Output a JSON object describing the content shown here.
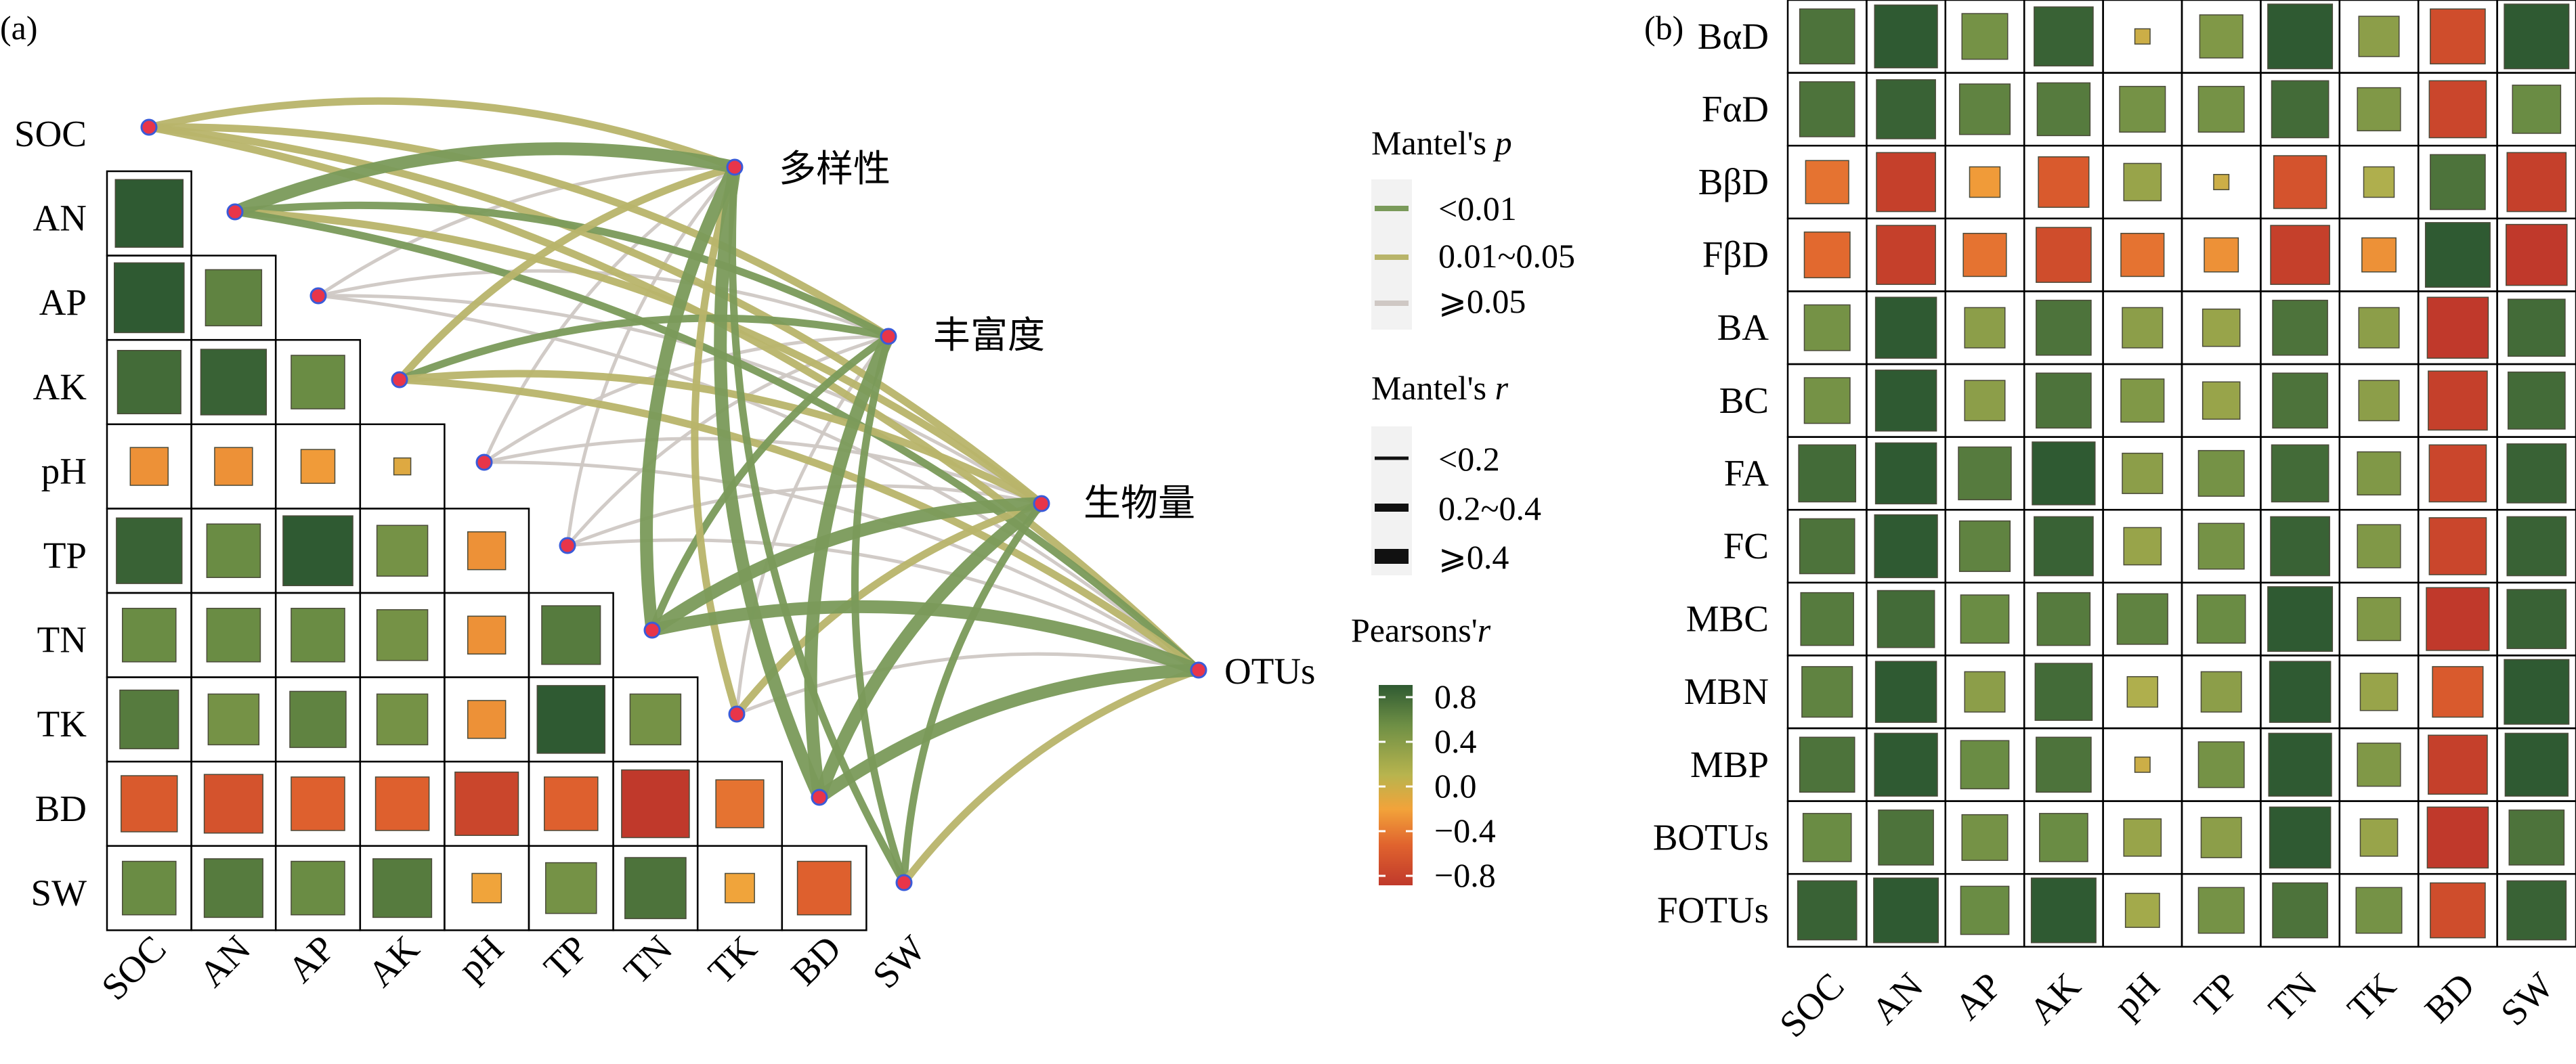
{
  "panels": {
    "a_label": "(a)",
    "b_label": "(b)"
  },
  "colors": {
    "p_lt_001": "#7a9a5a",
    "p_001_005": "#b8b46a",
    "p_ge_005": "#cfc8c4",
    "scale": [
      "#c0392b",
      "#e0632e",
      "#f2a33a",
      "#b8b44e",
      "#6e8f45",
      "#2f5a32"
    ],
    "node_fill": "#e8354a",
    "node_stroke": "#3a5bd9"
  },
  "legend": {
    "p_title": "Mantel's ",
    "p_title_italic": "p",
    "p_items": [
      "<0.01",
      "0.01~0.05",
      "⩾0.05"
    ],
    "r_title": "Mantel's ",
    "r_title_italic": "r",
    "r_items": [
      "<0.2",
      "0.2~0.4",
      "⩾0.4"
    ],
    "pearson_title": "Pearsons'",
    "pearson_title_italic": "r",
    "pearson_ticks": [
      "0.8",
      "0.4",
      "0.0",
      "−0.4",
      "−0.8"
    ]
  },
  "chart_data": [
    {
      "panel": "(a)",
      "type": "heatmap",
      "layout": "lower-triangle correlation matrix with Mantel network",
      "variables": [
        "SOC",
        "AN",
        "AP",
        "AK",
        "pH",
        "TP",
        "TN",
        "TK",
        "BD",
        "SW"
      ],
      "matrix": [
        [
          0.8
        ],
        [
          0.85,
          0.55
        ],
        [
          0.7,
          0.75,
          0.5
        ],
        [
          -0.25,
          -0.25,
          -0.2,
          -0.05
        ],
        [
          0.75,
          0.5,
          0.85,
          0.45,
          -0.25
        ],
        [
          0.5,
          0.5,
          0.5,
          0.45,
          -0.25,
          0.6
        ],
        [
          0.6,
          0.45,
          0.55,
          0.45,
          -0.25,
          0.8,
          0.45
        ],
        [
          -0.55,
          -0.6,
          -0.5,
          -0.5,
          -0.7,
          -0.5,
          -0.8,
          -0.4
        ],
        [
          0.5,
          0.6,
          0.5,
          0.6,
          -0.15,
          0.45,
          0.65,
          -0.15,
          -0.5
        ]
      ],
      "targets": [
        "多样性",
        "丰富度",
        "生物量",
        "OTUs"
      ],
      "mantel_links": [
        {
          "from": "SOC",
          "to": "多样性",
          "p": "0.01~0.05",
          "r": "0.2~0.4"
        },
        {
          "from": "SOC",
          "to": "丰富度",
          "p": "0.01~0.05",
          "r": "0.2~0.4"
        },
        {
          "from": "SOC",
          "to": "生物量",
          "p": "0.01~0.05",
          "r": "0.2~0.4"
        },
        {
          "from": "SOC",
          "to": "OTUs",
          "p": "0.01~0.05",
          "r": "0.2~0.4"
        },
        {
          "from": "AN",
          "to": "多样性",
          "p": "<0.01",
          "r": "⩾0.4"
        },
        {
          "from": "AN",
          "to": "丰富度",
          "p": "<0.01",
          "r": "0.2~0.4"
        },
        {
          "from": "AN",
          "to": "生物量",
          "p": "0.01~0.05",
          "r": "0.2~0.4"
        },
        {
          "from": "AN",
          "to": "OTUs",
          "p": "<0.01",
          "r": "0.2~0.4"
        },
        {
          "from": "AP",
          "to": "多样性",
          "p": "⩾0.05",
          "r": "<0.2"
        },
        {
          "from": "AP",
          "to": "丰富度",
          "p": "⩾0.05",
          "r": "<0.2"
        },
        {
          "from": "AP",
          "to": "生物量",
          "p": "⩾0.05",
          "r": "<0.2"
        },
        {
          "from": "AP",
          "to": "OTUs",
          "p": "⩾0.05",
          "r": "<0.2"
        },
        {
          "from": "AK",
          "to": "多样性",
          "p": "0.01~0.05",
          "r": "0.2~0.4"
        },
        {
          "from": "AK",
          "to": "丰富度",
          "p": "<0.01",
          "r": "0.2~0.4"
        },
        {
          "from": "AK",
          "to": "生物量",
          "p": "0.01~0.05",
          "r": "0.2~0.4"
        },
        {
          "from": "AK",
          "to": "OTUs",
          "p": "0.01~0.05",
          "r": "0.2~0.4"
        },
        {
          "from": "pH",
          "to": "多样性",
          "p": "⩾0.05",
          "r": "<0.2"
        },
        {
          "from": "pH",
          "to": "丰富度",
          "p": "⩾0.05",
          "r": "<0.2"
        },
        {
          "from": "pH",
          "to": "生物量",
          "p": "⩾0.05",
          "r": "<0.2"
        },
        {
          "from": "pH",
          "to": "OTUs",
          "p": "⩾0.05",
          "r": "<0.2"
        },
        {
          "from": "TP",
          "to": "多样性",
          "p": "⩾0.05",
          "r": "<0.2"
        },
        {
          "from": "TP",
          "to": "丰富度",
          "p": "⩾0.05",
          "r": "<0.2"
        },
        {
          "from": "TP",
          "to": "生物量",
          "p": "⩾0.05",
          "r": "<0.2"
        },
        {
          "from": "TP",
          "to": "OTUs",
          "p": "⩾0.05",
          "r": "<0.2"
        },
        {
          "from": "TN",
          "to": "多样性",
          "p": "<0.01",
          "r": "⩾0.4"
        },
        {
          "from": "TN",
          "to": "丰富度",
          "p": "<0.01",
          "r": "0.2~0.4"
        },
        {
          "from": "TN",
          "to": "生物量",
          "p": "<0.01",
          "r": "⩾0.4"
        },
        {
          "from": "TN",
          "to": "OTUs",
          "p": "<0.01",
          "r": "⩾0.4"
        },
        {
          "from": "TK",
          "to": "多样性",
          "p": "0.01~0.05",
          "r": "0.2~0.4"
        },
        {
          "from": "TK",
          "to": "丰富度",
          "p": "⩾0.05",
          "r": "<0.2"
        },
        {
          "from": "TK",
          "to": "生物量",
          "p": "0.01~0.05",
          "r": "0.2~0.4"
        },
        {
          "from": "TK",
          "to": "OTUs",
          "p": "⩾0.05",
          "r": "<0.2"
        },
        {
          "from": "BD",
          "to": "多样性",
          "p": "<0.01",
          "r": "⩾0.4"
        },
        {
          "from": "BD",
          "to": "丰富度",
          "p": "<0.01",
          "r": "⩾0.4"
        },
        {
          "from": "BD",
          "to": "生物量",
          "p": "<0.01",
          "r": "⩾0.4"
        },
        {
          "from": "BD",
          "to": "OTUs",
          "p": "<0.01",
          "r": "⩾0.4"
        },
        {
          "from": "SW",
          "to": "多样性",
          "p": "<0.01",
          "r": "0.2~0.4"
        },
        {
          "from": "SW",
          "to": "丰富度",
          "p": "<0.01",
          "r": "0.2~0.4"
        },
        {
          "from": "SW",
          "to": "生物量",
          "p": "<0.01",
          "r": "0.2~0.4"
        },
        {
          "from": "SW",
          "to": "OTUs",
          "p": "0.01~0.05",
          "r": "0.2~0.4"
        }
      ],
      "color_range": [
        -0.8,
        0.8
      ]
    },
    {
      "panel": "(b)",
      "type": "heatmap",
      "rows": [
        "BαD",
        "FαD",
        "BβD",
        "FβD",
        "BA",
        "BC",
        "FA",
        "FC",
        "MBC",
        "MBN",
        "MBP",
        "BOTUs",
        "FOTUs"
      ],
      "columns": [
        "SOC",
        "AN",
        "AP",
        "AK",
        "pH",
        "TP",
        "TN",
        "TK",
        "BD",
        "SW"
      ],
      "matrix": [
        [
          0.65,
          0.85,
          0.45,
          0.75,
          0.05,
          0.4,
          0.9,
          0.35,
          -0.65,
          0.9
        ],
        [
          0.65,
          0.75,
          0.55,
          0.6,
          0.45,
          0.45,
          0.7,
          0.4,
          -0.7,
          0.5
        ],
        [
          -0.4,
          -0.75,
          -0.2,
          -0.55,
          0.3,
          0.05,
          -0.6,
          0.2,
          0.65,
          -0.75
        ],
        [
          -0.45,
          -0.75,
          -0.4,
          -0.65,
          -0.4,
          -0.25,
          -0.75,
          -0.25,
          0.9,
          -0.8
        ],
        [
          0.45,
          0.8,
          0.35,
          0.65,
          0.35,
          0.3,
          0.65,
          0.35,
          -0.8,
          0.7
        ],
        [
          0.45,
          0.8,
          0.35,
          0.65,
          0.4,
          0.3,
          0.65,
          0.35,
          -0.75,
          0.7
        ],
        [
          0.7,
          0.8,
          0.6,
          0.85,
          0.35,
          0.45,
          0.7,
          0.4,
          -0.7,
          0.75
        ],
        [
          0.65,
          0.85,
          0.55,
          0.75,
          0.3,
          0.45,
          0.75,
          0.4,
          -0.7,
          0.75
        ],
        [
          0.6,
          0.7,
          0.5,
          0.6,
          0.55,
          0.5,
          0.9,
          0.4,
          -0.85,
          0.75
        ],
        [
          0.55,
          0.8,
          0.35,
          0.7,
          0.2,
          0.35,
          0.8,
          0.3,
          -0.55,
          0.9
        ],
        [
          0.65,
          0.85,
          0.5,
          0.65,
          0.05,
          0.45,
          0.85,
          0.4,
          -0.75,
          0.85
        ],
        [
          0.5,
          0.65,
          0.45,
          0.5,
          0.3,
          0.35,
          0.8,
          0.3,
          -0.8,
          0.65
        ],
        [
          0.75,
          0.9,
          0.5,
          0.9,
          0.25,
          0.45,
          0.65,
          0.45,
          -0.65,
          0.75
        ]
      ],
      "color_range": [
        -0.8,
        0.8
      ]
    }
  ]
}
